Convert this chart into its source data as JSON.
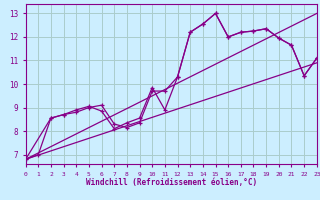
{
  "xlabel": "Windchill (Refroidissement éolien,°C)",
  "bg_color": "#cceeff",
  "line_color": "#880088",
  "grid_color": "#aacccc",
  "x_ticks": [
    0,
    1,
    2,
    3,
    4,
    5,
    6,
    7,
    8,
    9,
    10,
    11,
    12,
    13,
    14,
    15,
    16,
    17,
    18,
    19,
    20,
    21,
    22,
    23
  ],
  "y_ticks": [
    7,
    8,
    9,
    10,
    11,
    12,
    13
  ],
  "xlim": [
    0,
    23
  ],
  "ylim": [
    6.6,
    13.4
  ],
  "series1_x": [
    0,
    1,
    2,
    3,
    4,
    5,
    6,
    7,
    8,
    9,
    10,
    11,
    12,
    13,
    14,
    15,
    16,
    17,
    18,
    19,
    20,
    21,
    22,
    23
  ],
  "series1_y": [
    6.8,
    7.0,
    8.55,
    8.7,
    8.8,
    9.0,
    9.1,
    8.3,
    8.15,
    8.35,
    9.7,
    9.7,
    10.3,
    12.2,
    12.55,
    13.0,
    12.0,
    12.2,
    12.25,
    12.35,
    11.95,
    11.65,
    10.35,
    11.1
  ],
  "series2_x": [
    0,
    2,
    3,
    4,
    5,
    6,
    7,
    8,
    9,
    10,
    11,
    12,
    13,
    14,
    15,
    16,
    17,
    18,
    19,
    20,
    21,
    22,
    23
  ],
  "series2_y": [
    6.8,
    8.55,
    8.7,
    8.9,
    9.05,
    8.85,
    8.1,
    8.35,
    8.55,
    9.85,
    8.9,
    10.3,
    12.2,
    12.55,
    13.0,
    12.0,
    12.2,
    12.25,
    12.35,
    11.95,
    11.65,
    10.35,
    11.1
  ],
  "trend1_x": [
    0,
    23
  ],
  "trend1_y": [
    6.8,
    10.9
  ],
  "trend2_x": [
    0,
    23
  ],
  "trend2_y": [
    6.8,
    13.0
  ]
}
